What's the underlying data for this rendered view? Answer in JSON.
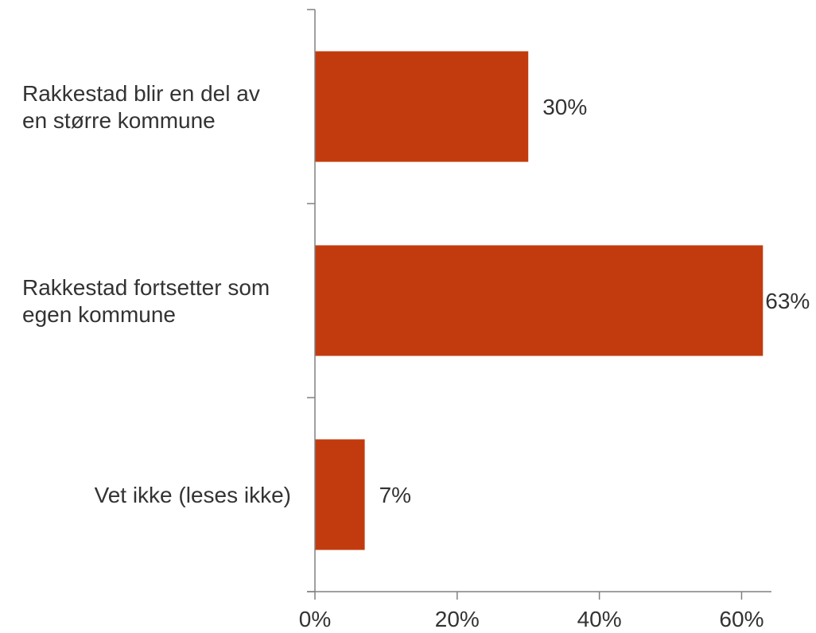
{
  "chart_data": {
    "type": "bar",
    "orientation": "horizontal",
    "categories": [
      [
        "Rakkestad blir en del av",
        "en større kommune"
      ],
      [
        "Rakkestad fortsetter som",
        "egen kommune"
      ],
      [
        "Vet ikke (leses ikke)"
      ]
    ],
    "values": [
      30,
      63,
      7
    ],
    "value_labels": [
      "30%",
      "63%",
      "7%"
    ],
    "xlim": [
      0,
      65
    ],
    "xticks": [
      0,
      20,
      40,
      60
    ],
    "xtick_labels": [
      "0%",
      "20%",
      "40%",
      "60%"
    ],
    "title": "",
    "xlabel": "",
    "ylabel": "",
    "grid": false,
    "bar_color": "#C23B0E"
  }
}
